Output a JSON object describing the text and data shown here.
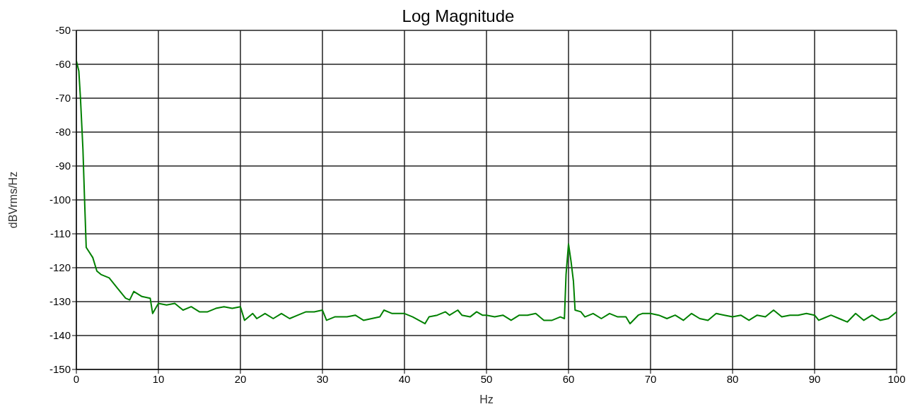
{
  "chart_data": {
    "type": "line",
    "title": "Log Magnitude",
    "xlabel": "Hz",
    "ylabel": "dBVrms/Hz",
    "xlim": [
      0,
      100
    ],
    "xticks": [
      0,
      10,
      20,
      30,
      40,
      50,
      60,
      70,
      80,
      90,
      100
    ],
    "ylim": [
      -150,
      -50
    ],
    "yticks": [
      -150,
      -140,
      -130,
      -120,
      -110,
      -100,
      -90,
      -80,
      -70,
      -60,
      -50
    ],
    "grid": true,
    "marker": "none",
    "line_style": "solid",
    "series": [
      {
        "color": "#008000",
        "x": [
          0,
          0.3,
          0.5,
          0.8,
          1.0,
          1.2,
          2,
          2.5,
          3,
          4,
          5,
          6,
          6.5,
          7,
          8,
          9,
          9.3,
          10,
          11,
          12,
          13,
          14,
          15,
          16,
          17,
          18,
          19,
          20,
          20.5,
          21.5,
          22,
          23,
          24,
          25,
          26,
          27,
          28,
          29,
          30,
          30.5,
          31.5,
          33,
          34,
          35,
          36,
          37,
          37.5,
          38.5,
          40,
          41,
          42.5,
          43,
          44,
          45,
          45.5,
          46.5,
          47,
          48,
          48.8,
          49.5,
          50,
          51,
          52,
          53,
          54,
          55,
          56,
          57,
          58,
          59,
          59.5,
          59.7,
          60,
          60.3,
          60.6,
          60.8,
          61.5,
          62,
          63,
          64,
          65,
          66,
          67,
          67.5,
          68.5,
          69,
          70,
          71,
          72,
          73,
          74,
          75,
          76,
          77,
          78,
          79,
          80,
          81,
          82,
          83,
          84,
          85,
          86,
          87,
          88,
          89,
          90,
          90.5,
          91,
          92,
          93,
          94,
          95,
          96,
          97,
          98,
          99,
          100
        ],
        "values": [
          -59,
          -62,
          -70,
          -85,
          -100,
          -114,
          -117,
          -121,
          -122,
          -123,
          -126,
          -129,
          -129.5,
          -127,
          -128.5,
          -129,
          -133.5,
          -130.5,
          -131,
          -130.5,
          -132.5,
          -131.5,
          -133,
          -133,
          -132,
          -131.5,
          -132,
          -131.5,
          -135.5,
          -133.5,
          -135,
          -133.5,
          -135,
          -133.5,
          -135,
          -134,
          -133,
          -133,
          -132.5,
          -135.5,
          -134.5,
          -134.5,
          -134,
          -135.5,
          -135,
          -134.5,
          -132.5,
          -133.5,
          -133.5,
          -134.5,
          -136.5,
          -134.5,
          -134,
          -133,
          -134,
          -132.5,
          -134,
          -134.5,
          -133,
          -134,
          -134,
          -134.5,
          -134,
          -135.5,
          -134,
          -134,
          -133.5,
          -135.5,
          -135.5,
          -134.5,
          -135,
          -122,
          -113,
          -118,
          -124,
          -132.5,
          -133,
          -134.5,
          -133.5,
          -135,
          -133.5,
          -134.5,
          -134.5,
          -136.5,
          -134,
          -133.5,
          -133.5,
          -134,
          -135,
          -134,
          -135.5,
          -133.5,
          -135,
          -135.5,
          -133.5,
          -134,
          -134.5,
          -134,
          -135.5,
          -134,
          -134.5,
          -132.5,
          -134.5,
          -134,
          -134,
          -133.5,
          -134,
          -135.5,
          -135,
          -134,
          -135,
          -136,
          -133.5,
          -135.5,
          -134,
          -135.5,
          -135,
          -133
        ]
      }
    ]
  }
}
